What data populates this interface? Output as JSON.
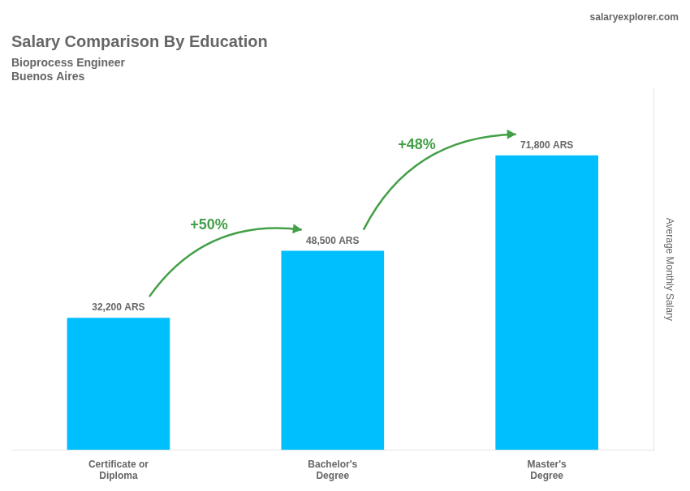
{
  "chart_data": {
    "type": "bar",
    "title": "Salary Comparison By Education",
    "subtitle": [
      "Bioprocess Engineer",
      "Buenos Aires"
    ],
    "y_label": "Average Monthly Salary",
    "categories": [
      "Certificate or\nDiploma",
      "Bachelor's\nDegree",
      "Master's\nDegree"
    ],
    "values": [
      32200,
      48500,
      71800
    ],
    "value_labels": [
      "32,200 ARS",
      "48,500 ARS",
      "71,800 ARS"
    ],
    "data_labels": true,
    "color": "#00BFFF",
    "ylim": [
      0,
      88000
    ],
    "grid": false,
    "tick_labels": "x",
    "annotations": [
      {
        "text": "+50%",
        "from": "Certificate or\nDiploma",
        "to": "Bachelor's\nDegree"
      },
      {
        "text": "+48%",
        "from": "Bachelor's\nDegree",
        "to": "Master's\nDegree"
      },
      {
        "text": "salaryexplorer.com"
      }
    ]
  }
}
